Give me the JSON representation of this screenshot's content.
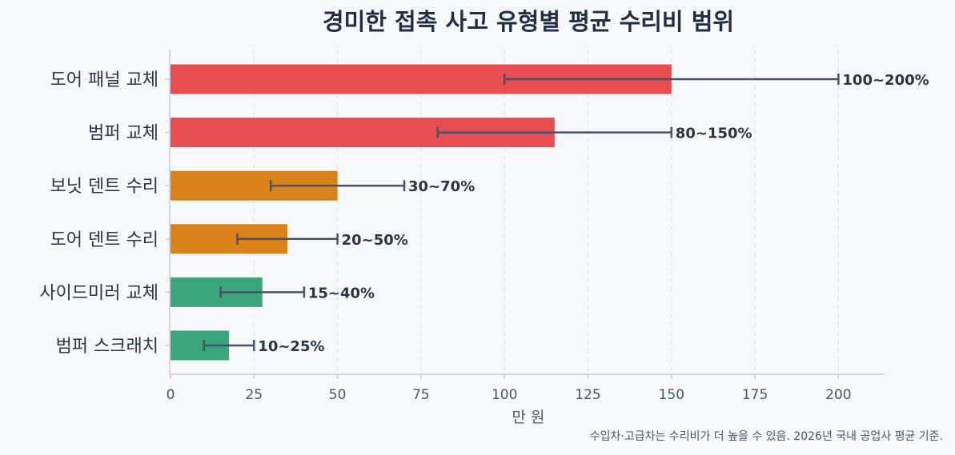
{
  "chart_data": {
    "type": "bar",
    "orientation": "horizontal",
    "title": "경미한 접촉 사고 유형별 평균 수리비 범위",
    "xlabel": "만 원",
    "ylabel": "",
    "xlim": [
      0,
      214
    ],
    "xticks": [
      0,
      25,
      50,
      75,
      100,
      125,
      150,
      175,
      200
    ],
    "grid": "x, dashed",
    "categories": [
      "도어 패널 교체",
      "범퍼 교체",
      "보닛 덴트 수리",
      "도어 덴트 수리",
      "사이드미러 교체",
      "범퍼 스크래치"
    ],
    "values": [
      150,
      115,
      50,
      35,
      27.5,
      17.5
    ],
    "error_low": [
      100,
      80,
      30,
      20,
      15,
      10
    ],
    "error_high": [
      200,
      150,
      70,
      50,
      40,
      25
    ],
    "range_labels": [
      "100~200%",
      "80~150%",
      "30~70%",
      "20~50%",
      "15~40%",
      "10~25%"
    ],
    "colors": [
      "#e84d4f",
      "#e84d4f",
      "#d9821a",
      "#d9821a",
      "#3aa67c",
      "#3aa67c"
    ]
  },
  "footnote": "수입차·고급차는 수리비가 더 높을 수 있음. 2026년 국내 공업사 평균 기준."
}
